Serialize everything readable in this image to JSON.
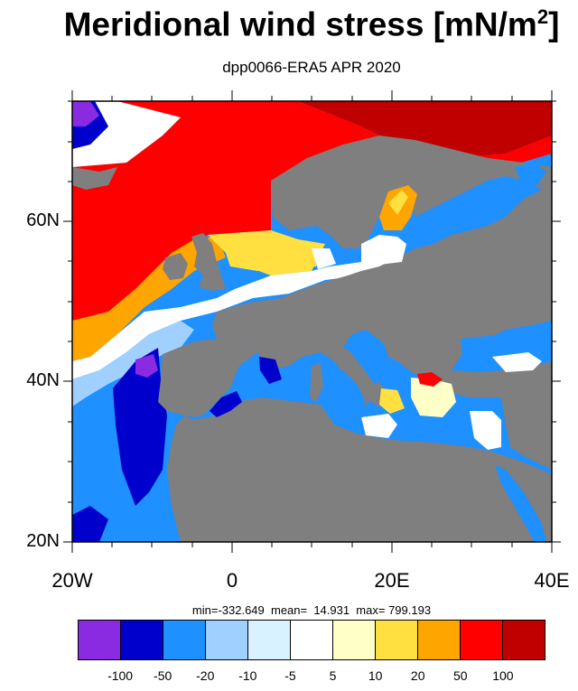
{
  "title": "Meridional wind stress [mN/m",
  "title_sup": "2",
  "title_end": "]",
  "subtitle": "dpp0066-ERA5  APR 2020",
  "map": {
    "lat_labels": [
      "60N",
      "40N",
      "20N"
    ],
    "lon_labels": [
      "20W",
      "0",
      "20E",
      "40E"
    ],
    "land_color": "#7f7f7f"
  },
  "stats": "min=-332.649  mean=  14.931  max= 799.193",
  "colorbar": {
    "colors": [
      "#8a2be2",
      "#0000cd",
      "#1e90ff",
      "#a0d0ff",
      "#d8f2ff",
      "#ffffff",
      "#ffffc8",
      "#ffe040",
      "#ffa500",
      "#ff0000",
      "#c00000"
    ],
    "labels": [
      "-100",
      "-50",
      "-20",
      "-10",
      "-5",
      "5",
      "10",
      "20",
      "50",
      "100"
    ]
  }
}
